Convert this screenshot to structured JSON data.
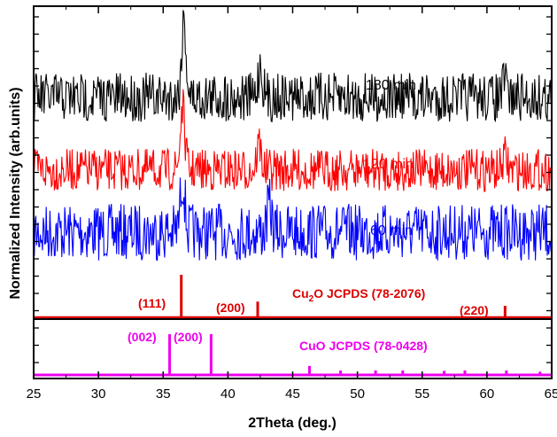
{
  "chart_data": {
    "type": "line",
    "xlabel": "2Theta (deg.)",
    "ylabel": "Normalized Intensity (arb.units)",
    "xlim": [
      25,
      65
    ],
    "x_ticks": [
      25,
      30,
      35,
      40,
      45,
      50,
      55,
      60,
      65
    ],
    "grid": false,
    "colors": {
      "series_180": "#000000",
      "series_120": "#ff0000",
      "series_60": "#0000ff",
      "cu2o_ref": "#dd0000",
      "cuo_ref": "#ee00ee"
    },
    "series": [
      {
        "name": "180 min",
        "baseline": 110.0,
        "noise": 28,
        "peaks": [
          {
            "x": 36.6,
            "height": 85
          },
          {
            "x": 42.5,
            "height": 35
          },
          {
            "x": 61.4,
            "height": 18
          }
        ]
      },
      {
        "name": "120 min",
        "baseline": 192.0,
        "noise": 24,
        "peaks": [
          {
            "x": 36.5,
            "height": 70
          },
          {
            "x": 42.4,
            "height": 30
          },
          {
            "x": 61.4,
            "height": 15
          }
        ]
      },
      {
        "name": "60 min",
        "baseline": 262.0,
        "noise": 32,
        "peaks": [
          {
            "x": 36.5,
            "height": 60
          },
          {
            "x": 43.2,
            "height": 30
          }
        ]
      }
    ],
    "references": [
      {
        "label_prefix": "Cu",
        "label_sub": "2",
        "label_suffix": "O JCPDS (78-2076)",
        "peaks": [
          {
            "x": 36.4,
            "intensity": 100,
            "hkl": "(111)"
          },
          {
            "x": 42.3,
            "intensity": 37,
            "hkl": "(200)"
          },
          {
            "x": 61.4,
            "intensity": 27,
            "hkl": "(220)"
          }
        ]
      },
      {
        "label": "CuO JCPDS (78-0428)",
        "peaks": [
          {
            "x": 35.5,
            "intensity": 100,
            "hkl": "(002)"
          },
          {
            "x": 38.7,
            "intensity": 100,
            "hkl": "(200)"
          },
          {
            "x": 46.3,
            "intensity": 22
          },
          {
            "x": 48.7,
            "intensity": 11
          },
          {
            "x": 51.4,
            "intensity": 11
          },
          {
            "x": 53.5,
            "intensity": 11
          },
          {
            "x": 56.7,
            "intensity": 10
          },
          {
            "x": 58.3,
            "intensity": 11
          },
          {
            "x": 61.5,
            "intensity": 11
          },
          {
            "x": 64.1,
            "intensity": 8
          }
        ]
      }
    ]
  }
}
